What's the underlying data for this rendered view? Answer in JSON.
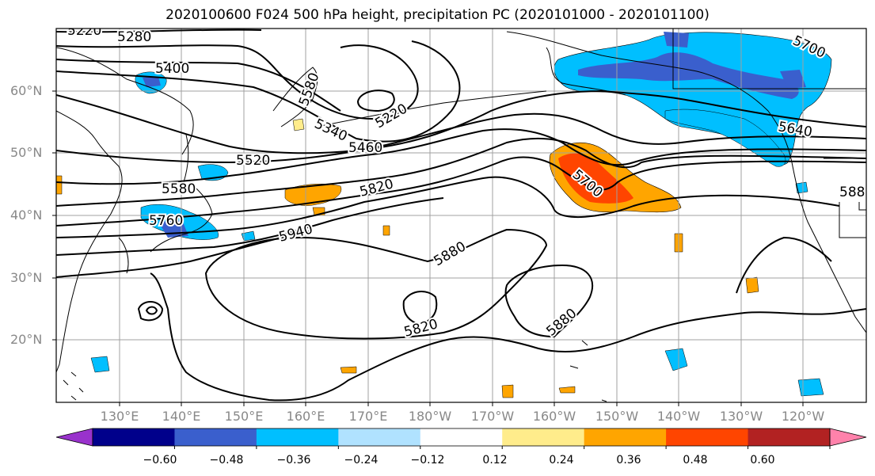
{
  "title": "2020100600 F024 500 hPa height, precipitation PC (2020101000 - 2020101100)",
  "lat_labels": [
    "60°N",
    "50°N",
    "40°N",
    "30°N",
    "20°N"
  ],
  "lon_labels": [
    "130°E",
    "140°E",
    "150°E",
    "160°E",
    "170°E",
    "180°W",
    "170°W",
    "160°W",
    "150°W",
    "140°W",
    "130°W",
    "120°W"
  ],
  "contour_labels": [
    "5220",
    "5280",
    "5400",
    "5220",
    "5340",
    "5460",
    "5520",
    "5580",
    "5760",
    "5820",
    "5940",
    "5880",
    "5820",
    "5880",
    "5580",
    "5700",
    "5640",
    "5700",
    "588"
  ],
  "colorbar": {
    "ticks": [
      "−0.60",
      "−0.48",
      "−0.36",
      "−0.24",
      "−0.12",
      "0.12",
      "0.24",
      "0.36",
      "0.48",
      "0.60"
    ],
    "colors": [
      "#9932cc",
      "#00008b",
      "#3a5fcd",
      "#00bfff",
      "#b0e2ff",
      "#ffffff",
      "#ffec8b",
      "#ffa500",
      "#ff4500",
      "#b22222",
      "#ff82ab"
    ]
  }
}
